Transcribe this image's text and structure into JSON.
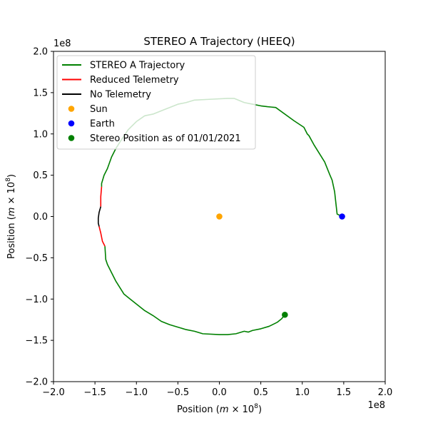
{
  "chart_data": {
    "type": "line",
    "title": "STEREO A Trajectory (HEEQ)",
    "xlabel": "Position ($m \\times 10^8$)",
    "ylabel": "Position ($m \\times 10^8$)",
    "x_offset_label": "1e8",
    "y_offset_label": "1e8",
    "xlim": [
      -2.0,
      2.0
    ],
    "ylim": [
      -2.0,
      2.0
    ],
    "xticks": [
      -2.0,
      -1.5,
      -1.0,
      -0.5,
      0.0,
      0.5,
      1.0,
      1.5,
      2.0
    ],
    "yticks": [
      -2.0,
      -1.5,
      -1.0,
      -0.5,
      0.0,
      0.5,
      1.0,
      1.5,
      2.0
    ],
    "xtick_labels": [
      "−2.0",
      "−1.5",
      "−1.0",
      "−0.5",
      "0.0",
      "0.5",
      "1.0",
      "1.5",
      "2.0"
    ],
    "ytick_labels": [
      "−2.0",
      "−1.5",
      "−1.0",
      "−0.5",
      "0.0",
      "0.5",
      "1.0",
      "1.5",
      "2.0"
    ],
    "grid": false,
    "legend_position": "upper-left",
    "series": [
      {
        "name": "STEREO A Trajectory",
        "color": "#008000",
        "segments": [
          [
            [
              1.48,
              0.0
            ],
            [
              1.42,
              0.03
            ],
            [
              1.41,
              0.12
            ],
            [
              1.39,
              0.3
            ],
            [
              1.36,
              0.44
            ],
            [
              1.33,
              0.51
            ],
            [
              1.27,
              0.66
            ],
            [
              1.14,
              0.87
            ],
            [
              1.08,
              0.98
            ],
            [
              1.06,
              1.0
            ],
            [
              1.02,
              1.08
            ],
            [
              0.9,
              1.16
            ],
            [
              0.68,
              1.32
            ],
            [
              0.58,
              1.33
            ],
            [
              0.5,
              1.34
            ],
            [
              0.4,
              1.36
            ],
            [
              0.3,
              1.38
            ],
            [
              0.18,
              1.43
            ],
            [
              0.1,
              1.43
            ],
            [
              -0.1,
              1.42
            ],
            [
              -0.3,
              1.41
            ],
            [
              -0.4,
              1.38
            ],
            [
              -0.5,
              1.36
            ],
            [
              -0.6,
              1.32
            ],
            [
              -0.65,
              1.3
            ],
            [
              -0.8,
              1.24
            ],
            [
              -0.9,
              1.22
            ],
            [
              -1.0,
              1.15
            ],
            [
              -1.1,
              1.05
            ],
            [
              -1.2,
              0.9
            ],
            [
              -1.25,
              0.82
            ],
            [
              -1.3,
              0.72
            ],
            [
              -1.35,
              0.58
            ],
            [
              -1.39,
              0.5
            ],
            [
              -1.42,
              0.4
            ],
            [
              -1.42,
              0.36
            ]
          ],
          [
            [
              -1.38,
              -0.36
            ],
            [
              -1.37,
              -0.52
            ],
            [
              -1.35,
              -0.58
            ],
            [
              -1.3,
              -0.68
            ],
            [
              -1.25,
              -0.78
            ],
            [
              -1.2,
              -0.86
            ],
            [
              -1.15,
              -0.94
            ],
            [
              -1.1,
              -0.98
            ],
            [
              -1.0,
              -1.06
            ],
            [
              -0.9,
              -1.14
            ],
            [
              -0.8,
              -1.2
            ],
            [
              -0.7,
              -1.27
            ],
            [
              -0.6,
              -1.31
            ],
            [
              -0.5,
              -1.34
            ],
            [
              -0.4,
              -1.37
            ],
            [
              -0.3,
              -1.39
            ],
            [
              -0.2,
              -1.42
            ],
            [
              0.0,
              -1.43
            ],
            [
              0.1,
              -1.43
            ],
            [
              0.2,
              -1.42
            ],
            [
              0.3,
              -1.39
            ],
            [
              0.35,
              -1.4
            ],
            [
              0.4,
              -1.38
            ],
            [
              0.5,
              -1.36
            ],
            [
              0.6,
              -1.33
            ],
            [
              0.7,
              -1.28
            ],
            [
              0.75,
              -1.24
            ],
            [
              0.79,
              -1.19
            ]
          ]
        ]
      },
      {
        "name": "Reduced Telemetry",
        "color": "#ff0000",
        "segments": [
          [
            [
              -1.42,
              0.36
            ],
            [
              -1.43,
              0.24
            ],
            [
              -1.43,
              0.15
            ],
            [
              -1.43,
              0.12
            ]
          ],
          [
            [
              -1.45,
              -0.12
            ],
            [
              -1.43,
              -0.2
            ],
            [
              -1.41,
              -0.3
            ],
            [
              -1.38,
              -0.36
            ]
          ]
        ]
      },
      {
        "name": "No Telemetry",
        "color": "#000000",
        "segments": [
          [
            [
              -1.43,
              0.12
            ],
            [
              -1.45,
              0.05
            ],
            [
              -1.46,
              -0.02
            ],
            [
              -1.46,
              -0.08
            ],
            [
              -1.45,
              -0.12
            ]
          ]
        ]
      }
    ],
    "points": [
      {
        "name": "Sun",
        "color": "#ffa500",
        "x": 0.0,
        "y": 0.0
      },
      {
        "name": "Earth",
        "color": "#0000ff",
        "x": 1.48,
        "y": 0.0
      },
      {
        "name": "Stereo Position as of 01/01/2021",
        "color": "#008000",
        "x": 0.79,
        "y": -1.19
      }
    ]
  }
}
